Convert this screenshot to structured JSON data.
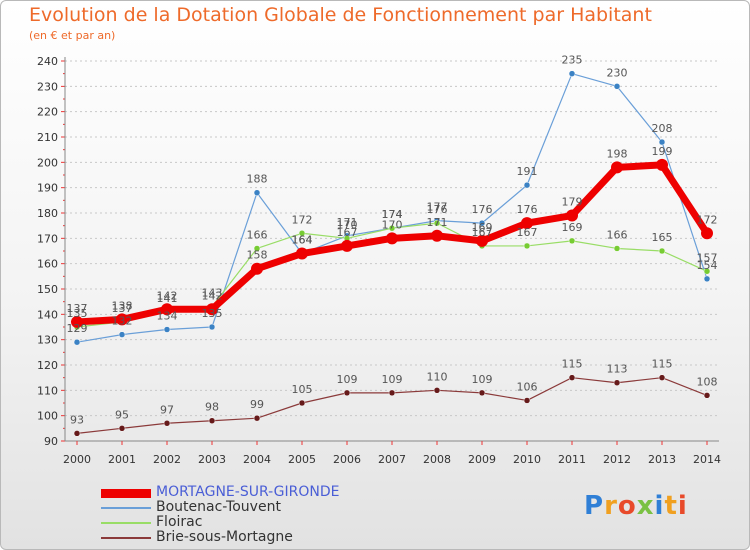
{
  "title": "Evolution de la Dotation Globale de Fonctionnement par Habitant",
  "subtitle": "(en € et par an)",
  "logo": {
    "text": "Proxiti",
    "letter_colors": [
      "#2f7fd6",
      "#f0a020",
      "#e84a2a",
      "#7ac143",
      "#2f7fd6",
      "#f0a020",
      "#e84a2a"
    ]
  },
  "chart_data": {
    "type": "line",
    "title": "Evolution de la Dotation Globale de Fonctionnement par Habitant",
    "subtitle": "(en € et par an)",
    "xlabel": "",
    "ylabel": "",
    "x": [
      2000,
      2001,
      2002,
      2003,
      2004,
      2005,
      2006,
      2007,
      2008,
      2009,
      2010,
      2011,
      2012,
      2013,
      2014
    ],
    "x_tick_labels": [
      "2000",
      "2001",
      "2002",
      "2003",
      "2004",
      "2005",
      "2006",
      "2007",
      "2008",
      "2009",
      "2010",
      "2011",
      "2012",
      "2013",
      "2014"
    ],
    "ylim": [
      90,
      240
    ],
    "y_ticks": [
      90,
      100,
      110,
      120,
      130,
      140,
      150,
      160,
      170,
      180,
      190,
      200,
      210,
      220,
      230,
      240
    ],
    "y_tick_labels": [
      "90",
      "100",
      "110",
      "120",
      "130",
      "140",
      "150",
      "160",
      "170",
      "180",
      "190",
      "200",
      "210",
      "220",
      "230",
      "240"
    ],
    "grid": "horizontal dotted",
    "legend_position": "bottom-left",
    "series": [
      {
        "name": "MORTAGNE-SUR-GIRONDE",
        "color": "#ee0000",
        "legend_text_color": "#4a5ed6",
        "emphasis": "thick",
        "values": [
          137,
          138,
          142,
          142,
          158,
          164,
          167,
          170,
          171,
          169,
          176,
          179,
          198,
          199,
          172
        ],
        "labels": [
          "137",
          "138",
          "142",
          "142",
          "158",
          "164",
          "167",
          "170",
          "171",
          "169",
          "176",
          "179",
          "198",
          "199",
          "172"
        ]
      },
      {
        "name": "Boutenac-Touvent",
        "color": "#6a9fd8",
        "marker_color": "#3b82c4",
        "legend_text_color": "#333333",
        "emphasis": "thin",
        "values": [
          129,
          132,
          134,
          135,
          188,
          164,
          171,
          174,
          177,
          176,
          191,
          235,
          230,
          208,
          154
        ],
        "labels": [
          "129",
          "132",
          "134",
          "135",
          "188",
          "164",
          "171",
          "174",
          "177",
          "176",
          "191",
          "235",
          "230",
          "208",
          "154"
        ]
      },
      {
        "name": "Floirac",
        "color": "#99dd66",
        "marker_color": "#77cc33",
        "legend_text_color": "#333333",
        "emphasis": "thin",
        "values": [
          135,
          137,
          141,
          143,
          166,
          172,
          170,
          174,
          176,
          167,
          167,
          169,
          166,
          165,
          157
        ],
        "labels": [
          "135",
          "137",
          "141",
          "143",
          "166",
          "172",
          "170",
          "174",
          "176",
          "167",
          "167",
          "169",
          "166",
          "165",
          "157"
        ]
      },
      {
        "name": "Brie-sous-Mortagne",
        "color": "#8b3a3a",
        "marker_color": "#661a1a",
        "legend_text_color": "#333333",
        "emphasis": "thin",
        "values": [
          93,
          95,
          97,
          98,
          99,
          105,
          109,
          109,
          110,
          109,
          106,
          115,
          113,
          115,
          108
        ],
        "labels": [
          "93",
          "95",
          "97",
          "98",
          "99",
          "105",
          "109",
          "109",
          "110",
          "109",
          "106",
          "115",
          "113",
          "115",
          "108"
        ]
      }
    ]
  }
}
